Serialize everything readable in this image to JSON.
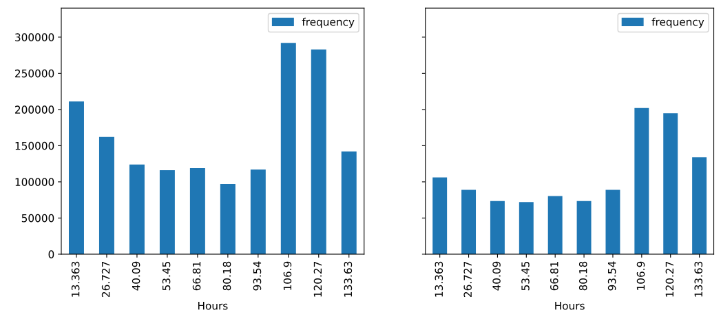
{
  "chart_data": [
    {
      "type": "bar",
      "xlabel": "Hours",
      "categories": [
        "13.363",
        "26.727",
        "40.09",
        "53.45",
        "66.81",
        "80.18",
        "93.54",
        "106.9",
        "120.27",
        "133.63"
      ],
      "series": [
        {
          "name": "frequency",
          "color": "#1f77b4",
          "values": [
            211000,
            162000,
            124000,
            116000,
            119000,
            97000,
            117000,
            292000,
            283000,
            142000
          ]
        }
      ],
      "ylim": [
        0,
        340000
      ],
      "yticks": [
        0,
        50000,
        100000,
        150000,
        200000,
        250000,
        300000
      ],
      "legend": "top right",
      "grid": false
    },
    {
      "type": "bar",
      "xlabel": "Hours",
      "categories": [
        "13.363",
        "26.727",
        "40.09",
        "53.45",
        "66.81",
        "80.18",
        "93.54",
        "106.9",
        "120.27",
        "133.63"
      ],
      "series": [
        {
          "name": "frequency",
          "color": "#1f77b4",
          "values": [
            106000,
            89000,
            73500,
            72000,
            80500,
            73500,
            89000,
            202000,
            195000,
            134000
          ]
        }
      ],
      "ylim": [
        0,
        340000
      ],
      "yticks": [
        0,
        50000,
        100000,
        150000,
        200000,
        250000,
        300000
      ],
      "legend": "top right",
      "grid": false,
      "tick_labels": "x"
    }
  ]
}
